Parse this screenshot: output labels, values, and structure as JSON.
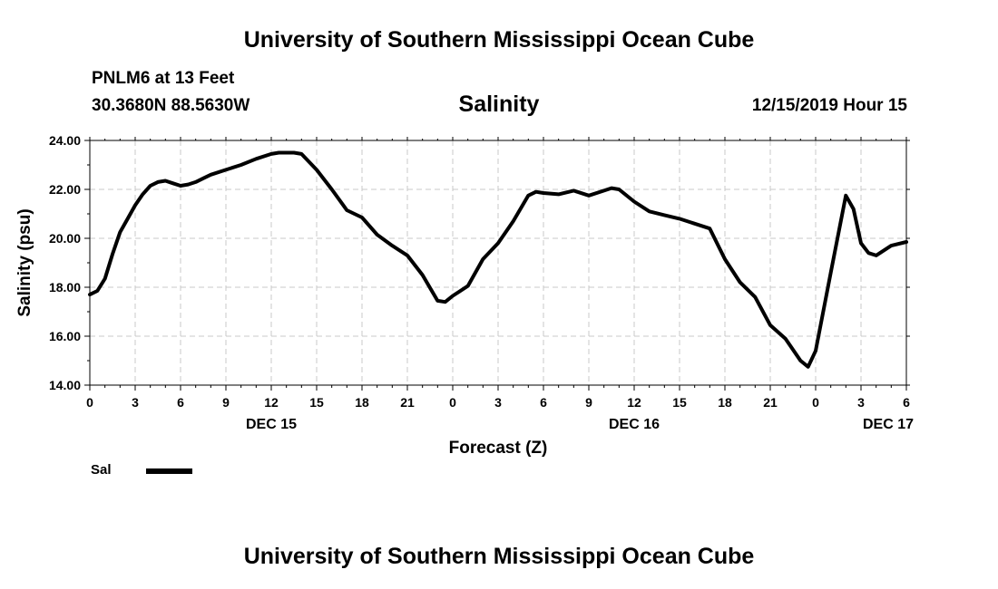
{
  "header": {
    "title_top": "University of Southern Mississippi Ocean Cube",
    "title_bottom": "University of Southern Mississippi Ocean Cube",
    "station": "PNLM6 at 13 Feet",
    "coords": "30.3680N 88.5630W",
    "datetime": "12/15/2019 Hour 15"
  },
  "legend": {
    "label": "Sal",
    "color": "#000000"
  },
  "chart_data": {
    "type": "line",
    "title": "Salinity",
    "xlabel": "Forecast (Z)",
    "ylabel": "Salinity (psu)",
    "xlim": [
      0,
      54
    ],
    "ylim": [
      14,
      24
    ],
    "grid": true,
    "legend_position": "bottom-left",
    "x_ticks": [
      {
        "x": 0,
        "label": "0"
      },
      {
        "x": 3,
        "label": "3"
      },
      {
        "x": 6,
        "label": "6"
      },
      {
        "x": 9,
        "label": "9"
      },
      {
        "x": 12,
        "label": "12"
      },
      {
        "x": 15,
        "label": "15"
      },
      {
        "x": 18,
        "label": "18"
      },
      {
        "x": 21,
        "label": "21"
      },
      {
        "x": 24,
        "label": "0"
      },
      {
        "x": 27,
        "label": "3"
      },
      {
        "x": 30,
        "label": "6"
      },
      {
        "x": 33,
        "label": "9"
      },
      {
        "x": 36,
        "label": "12"
      },
      {
        "x": 39,
        "label": "15"
      },
      {
        "x": 42,
        "label": "18"
      },
      {
        "x": 45,
        "label": "21"
      },
      {
        "x": 48,
        "label": "0"
      },
      {
        "x": 51,
        "label": "3"
      },
      {
        "x": 54,
        "label": "6"
      }
    ],
    "y_ticks": [
      {
        "y": 14,
        "label": "14.00"
      },
      {
        "y": 16,
        "label": "16.00"
      },
      {
        "y": 18,
        "label": "18.00"
      },
      {
        "y": 20,
        "label": "20.00"
      },
      {
        "y": 22,
        "label": "22.00"
      },
      {
        "y": 24,
        "label": "24.00"
      }
    ],
    "day_labels": [
      {
        "x": 12,
        "label": "DEC 15"
      },
      {
        "x": 36,
        "label": "DEC 16"
      },
      {
        "x": 52.8,
        "label": "DEC 17"
      }
    ],
    "series": [
      {
        "name": "Sal",
        "color": "#000000",
        "x": [
          0,
          0.5,
          1,
          1.5,
          2,
          2.5,
          3,
          3.5,
          4,
          4.5,
          5,
          5.5,
          6,
          6.5,
          7,
          7.5,
          8,
          9,
          10,
          11,
          12,
          12.5,
          13,
          13.5,
          14,
          15,
          16,
          17,
          18,
          19,
          20,
          21,
          22,
          23,
          23.5,
          24,
          25,
          26,
          27,
          28,
          29,
          29.5,
          30,
          31,
          32,
          33,
          34,
          34.5,
          35,
          36,
          37,
          38,
          39,
          40,
          41,
          42,
          43,
          44,
          45,
          46,
          47,
          47.5,
          48,
          49,
          50,
          50.5,
          51,
          51.5,
          52,
          53,
          54
        ],
        "y": [
          17.7,
          17.85,
          18.35,
          19.35,
          20.25,
          20.8,
          21.35,
          21.8,
          22.15,
          22.3,
          22.35,
          22.25,
          22.15,
          22.2,
          22.3,
          22.45,
          22.6,
          22.8,
          23.0,
          23.25,
          23.45,
          23.5,
          23.5,
          23.5,
          23.45,
          22.8,
          22.0,
          21.15,
          20.85,
          20.15,
          19.7,
          19.3,
          18.5,
          17.45,
          17.4,
          17.65,
          18.05,
          19.15,
          19.8,
          20.7,
          21.75,
          21.9,
          21.85,
          21.8,
          21.95,
          21.75,
          21.95,
          22.05,
          22.0,
          21.5,
          21.1,
          20.95,
          20.8,
          20.6,
          20.4,
          19.15,
          18.2,
          17.6,
          16.45,
          15.9,
          15.0,
          14.75,
          15.4,
          18.6,
          21.75,
          21.2,
          19.8,
          19.4,
          19.3,
          19.7,
          19.85
        ]
      }
    ]
  }
}
